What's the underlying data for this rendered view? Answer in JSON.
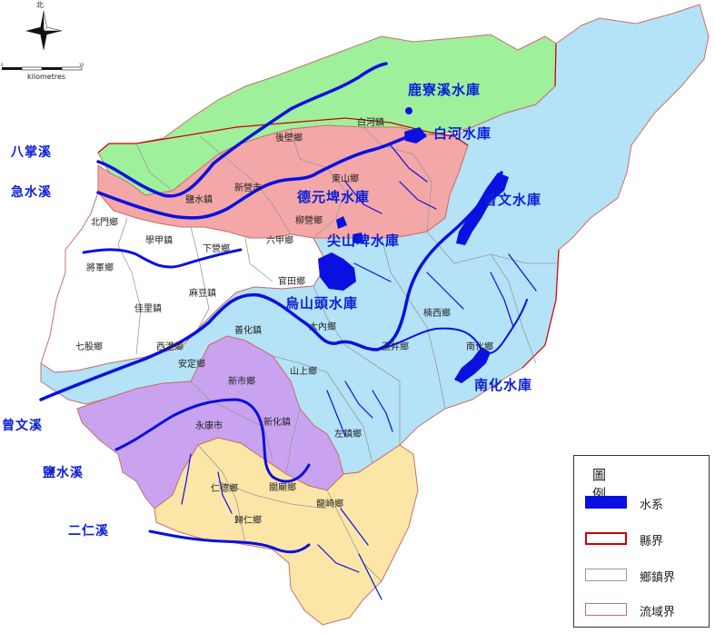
{
  "map": {
    "compass_label": "北",
    "scale_label": "kilometres",
    "scale_ticks": [
      "0",
      "10"
    ],
    "reservoirs": [
      "鹿寮溪水庫",
      "白河水庫",
      "德元埤水庫",
      "尖山埤水庫",
      "烏山頭水庫",
      "曾文水庫",
      "南化水庫"
    ],
    "rivers": [
      "八掌溪",
      "急水溪",
      "曾文溪",
      "鹽水溪",
      "二仁溪"
    ],
    "towns": [
      "白河鎮",
      "後壁鄉",
      "東山鄉",
      "新營市",
      "鹽水鎮",
      "柳營鄉",
      "北門鄉",
      "學甲鎮",
      "下營鄉",
      "六甲鄉",
      "將軍鄉",
      "官田鄉",
      "麻豆鎮",
      "佳里鎮",
      "大內鄉",
      "楠西鄉",
      "七股鄉",
      "西港鄉",
      "善化鎮",
      "玉井鄉",
      "南化鄉",
      "安定鄉",
      "山上鄉",
      "新市鄉",
      "新化鎮",
      "永康市",
      "左鎮鄉",
      "仁德鄉",
      "關廟鄉",
      "歸仁鄉",
      "龍崎鄉"
    ]
  },
  "legend": {
    "title": "圖例",
    "items": [
      {
        "label": "水系",
        "color": "#0a10e0"
      },
      {
        "label": "縣界",
        "color": "#d00000"
      },
      {
        "label": "鄉鎮界",
        "color": "#9a9a9a"
      },
      {
        "label": "流域界",
        "color": "#c8706a"
      }
    ]
  },
  "colors": {
    "bajhang": "#9ef09a",
    "jishuei": "#f4a7a7",
    "jiangjun": "#ffffff",
    "zengwen": "#b4e2f7",
    "yanshuei": "#c9a3f0",
    "erren": "#fbe6a8",
    "water": "#0a10e0"
  }
}
